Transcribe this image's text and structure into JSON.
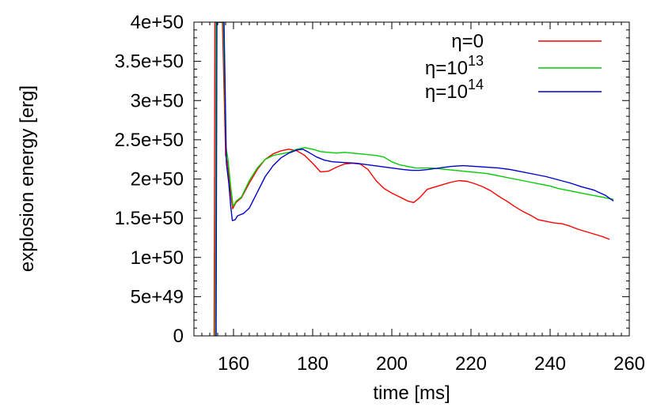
{
  "chart_data": {
    "type": "line",
    "title": "",
    "xlabel": "time [ms]",
    "ylabel": "explosion energy [erg]",
    "xlim": [
      150,
      260
    ],
    "ylim": [
      0,
      4e+50
    ],
    "xticks": [
      160,
      180,
      200,
      220,
      240,
      260
    ],
    "xtick_labels": [
      "160",
      "180",
      "200",
      "220",
      "240",
      "260"
    ],
    "yticks": [
      0,
      5e+49,
      1e+50,
      1.5e+50,
      2e+50,
      2.5e+50,
      3e+50,
      3.5e+50,
      4e+50
    ],
    "ytick_labels": [
      "0",
      "5e+49",
      "1e+50",
      "1.5e+50",
      "2e+50",
      "2.5e+50",
      "3e+50",
      "3.5e+50",
      "4e+50"
    ],
    "grid": false,
    "legend_position": "top-right",
    "series": [
      {
        "name": "η=0",
        "legend_base": "η=0",
        "legend_exp": "",
        "color": "#ff0000",
        "points": [
          [
            155.1,
            0
          ],
          [
            155.3,
            4e+50
          ],
          [
            157.2,
            4e+50
          ],
          [
            158.0,
            2.3e+50
          ],
          [
            158.5,
            2.2e+50
          ],
          [
            159.2,
            1.85e+50
          ],
          [
            159.8,
            1.62e+50
          ],
          [
            160.6,
            1.7e+50
          ],
          [
            162,
            1.76e+50
          ],
          [
            164,
            1.95e+50
          ],
          [
            166,
            2.12e+50
          ],
          [
            168,
            2.25e+50
          ],
          [
            170,
            2.32e+50
          ],
          [
            172,
            2.36e+50
          ],
          [
            174,
            2.38e+50
          ],
          [
            176,
            2.36e+50
          ],
          [
            178,
            2.3e+50
          ],
          [
            180,
            2.2e+50
          ],
          [
            182,
            2.09e+50
          ],
          [
            184,
            2.1e+50
          ],
          [
            186,
            2.15e+50
          ],
          [
            188,
            2.19e+50
          ],
          [
            190,
            2.2e+50
          ],
          [
            192,
            2.19e+50
          ],
          [
            194,
            2.12e+50
          ],
          [
            196,
            1.98e+50
          ],
          [
            198,
            1.88e+50
          ],
          [
            200,
            1.82e+50
          ],
          [
            202,
            1.77e+50
          ],
          [
            204,
            1.72e+50
          ],
          [
            205.5,
            1.7e+50
          ],
          [
            207,
            1.76e+50
          ],
          [
            209,
            1.87e+50
          ],
          [
            211,
            1.9e+50
          ],
          [
            213,
            1.93e+50
          ],
          [
            215,
            1.96e+50
          ],
          [
            217,
            1.98e+50
          ],
          [
            219,
            1.97e+50
          ],
          [
            221,
            1.94e+50
          ],
          [
            223,
            1.9e+50
          ],
          [
            225,
            1.85e+50
          ],
          [
            227,
            1.78e+50
          ],
          [
            229,
            1.72e+50
          ],
          [
            231,
            1.65e+50
          ],
          [
            233,
            1.59e+50
          ],
          [
            235,
            1.54e+50
          ],
          [
            237,
            1.48e+50
          ],
          [
            239,
            1.46e+50
          ],
          [
            241,
            1.44e+50
          ],
          [
            243,
            1.43e+50
          ],
          [
            245,
            1.4e+50
          ],
          [
            247,
            1.36e+50
          ],
          [
            249,
            1.33e+50
          ],
          [
            251,
            1.3e+50
          ],
          [
            253,
            1.27e+50
          ],
          [
            255,
            1.23e+50
          ]
        ]
      },
      {
        "name": "η=10^13",
        "legend_base": "η=10",
        "legend_exp": "13",
        "color": "#00cc00",
        "points": [
          [
            155.4,
            0
          ],
          [
            155.6,
            4e+50
          ],
          [
            157.4,
            4e+50
          ],
          [
            158.1,
            2.4e+50
          ],
          [
            158.6,
            2.25e+50
          ],
          [
            159.3,
            1.9e+50
          ],
          [
            159.9,
            1.65e+50
          ],
          [
            160.7,
            1.72e+50
          ],
          [
            162,
            1.77e+50
          ],
          [
            164,
            1.98e+50
          ],
          [
            166,
            2.14e+50
          ],
          [
            168,
            2.25e+50
          ],
          [
            170,
            2.3e+50
          ],
          [
            172,
            2.32e+50
          ],
          [
            174,
            2.34e+50
          ],
          [
            176,
            2.38e+50
          ],
          [
            178,
            2.4e+50
          ],
          [
            180,
            2.38e+50
          ],
          [
            182,
            2.35e+50
          ],
          [
            184,
            2.34e+50
          ],
          [
            186,
            2.33e+50
          ],
          [
            188,
            2.34e+50
          ],
          [
            190,
            2.33e+50
          ],
          [
            192,
            2.32e+50
          ],
          [
            194,
            2.31e+50
          ],
          [
            196,
            2.3e+50
          ],
          [
            198,
            2.28e+50
          ],
          [
            200,
            2.22e+50
          ],
          [
            202,
            2.18e+50
          ],
          [
            204,
            2.16e+50
          ],
          [
            206,
            2.14e+50
          ],
          [
            208,
            2.14e+50
          ],
          [
            210,
            2.14e+50
          ],
          [
            212,
            2.13e+50
          ],
          [
            214,
            2.12e+50
          ],
          [
            216,
            2.11e+50
          ],
          [
            218,
            2.1e+50
          ],
          [
            220,
            2.09e+50
          ],
          [
            222,
            2.08e+50
          ],
          [
            224,
            2.07e+50
          ],
          [
            226,
            2.05e+50
          ],
          [
            228,
            2.03e+50
          ],
          [
            230,
            2.01e+50
          ],
          [
            232,
            1.99e+50
          ],
          [
            234,
            1.97e+50
          ],
          [
            236,
            1.95e+50
          ],
          [
            238,
            1.93e+50
          ],
          [
            240,
            1.91e+50
          ],
          [
            242,
            1.88e+50
          ],
          [
            244,
            1.86e+50
          ],
          [
            246,
            1.84e+50
          ],
          [
            248,
            1.82e+50
          ],
          [
            250,
            1.8e+50
          ],
          [
            252,
            1.78e+50
          ],
          [
            254,
            1.76e+50
          ],
          [
            256,
            1.74e+50
          ]
        ]
      },
      {
        "name": "η=10^14",
        "legend_base": "η=10",
        "legend_exp": "14",
        "color": "#0000cc",
        "points": [
          [
            155.6,
            0
          ],
          [
            155.8,
            4e+50
          ],
          [
            157.6,
            4e+50
          ],
          [
            158.2,
            2.2e+50
          ],
          [
            158.8,
            1.95e+50
          ],
          [
            159.3,
            1.65e+50
          ],
          [
            159.7,
            1.47e+50
          ],
          [
            160.4,
            1.48e+50
          ],
          [
            161,
            1.53e+50
          ],
          [
            162.5,
            1.56e+50
          ],
          [
            164,
            1.63e+50
          ],
          [
            166,
            1.83e+50
          ],
          [
            168,
            2.03e+50
          ],
          [
            170,
            2.17e+50
          ],
          [
            172,
            2.27e+50
          ],
          [
            174,
            2.33e+50
          ],
          [
            176,
            2.37e+50
          ],
          [
            177.5,
            2.38e+50
          ],
          [
            179,
            2.34e+50
          ],
          [
            181,
            2.28e+50
          ],
          [
            183,
            2.24e+50
          ],
          [
            185,
            2.22e+50
          ],
          [
            188,
            2.21e+50
          ],
          [
            191,
            2.2e+50
          ],
          [
            194,
            2.18e+50
          ],
          [
            197,
            2.16e+50
          ],
          [
            200,
            2.14e+50
          ],
          [
            203,
            2.12e+50
          ],
          [
            205,
            2.11e+50
          ],
          [
            207,
            2.11e+50
          ],
          [
            209,
            2.12e+50
          ],
          [
            212,
            2.14e+50
          ],
          [
            215,
            2.16e+50
          ],
          [
            218,
            2.17e+50
          ],
          [
            221,
            2.16e+50
          ],
          [
            224,
            2.15e+50
          ],
          [
            227,
            2.14e+50
          ],
          [
            230,
            2.12e+50
          ],
          [
            233,
            2.09e+50
          ],
          [
            236,
            2.06e+50
          ],
          [
            239,
            2.03e+50
          ],
          [
            242,
            1.99e+50
          ],
          [
            245,
            1.95e+50
          ],
          [
            248,
            1.9e+50
          ],
          [
            251,
            1.86e+50
          ],
          [
            254,
            1.79e+50
          ],
          [
            256,
            1.72e+50
          ]
        ]
      }
    ]
  }
}
